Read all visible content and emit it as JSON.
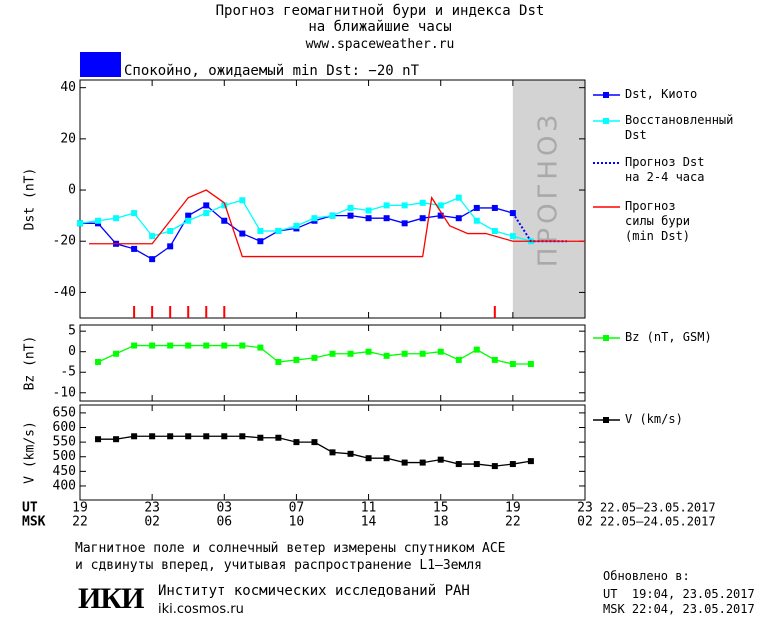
{
  "header": {
    "title": "Прогноз геомагнитной бури и индекса Dst",
    "subtitle": "на ближайшие часы",
    "site": "www.spaceweather.ru"
  },
  "status": {
    "text": "Спокойно, ожидаемый min Dst: −20 nT",
    "color": "#0000ff"
  },
  "time_axis": {
    "xlim": [
      0,
      28
    ],
    "rows": [
      {
        "name": "UT",
        "dates": "22.05–23.05.2017",
        "ticks": [
          {
            "value": 0,
            "label": "19"
          },
          {
            "value": 4,
            "label": "23"
          },
          {
            "value": 8,
            "label": "03"
          },
          {
            "value": 12,
            "label": "07"
          },
          {
            "value": 16,
            "label": "11"
          },
          {
            "value": 20,
            "label": "15"
          },
          {
            "value": 24,
            "label": "19"
          },
          {
            "value": 28,
            "label": "23"
          }
        ]
      },
      {
        "name": "MSK",
        "dates": "22.05–24.05.2017",
        "ticks": [
          {
            "value": 0,
            "label": "22"
          },
          {
            "value": 4,
            "label": "02"
          },
          {
            "value": 8,
            "label": "06"
          },
          {
            "value": 12,
            "label": "10"
          },
          {
            "value": 16,
            "label": "14"
          },
          {
            "value": 20,
            "label": "18"
          },
          {
            "value": 24,
            "label": "22"
          },
          {
            "value": 28,
            "label": "02"
          }
        ]
      }
    ]
  },
  "chart_data": [
    {
      "type": "line",
      "y_label": "Dst (nT)",
      "ylim": [
        -50,
        43
      ],
      "yticks": [
        40,
        20,
        0,
        -20,
        -40
      ],
      "forecast_region": [
        24,
        28
      ],
      "forecast_label": "ПРОГНОЗ",
      "forecast_color": "#d3d3d3",
      "event_marks": [
        3,
        4,
        5,
        6,
        7,
        8,
        23
      ],
      "event_color": "#ff0000",
      "series": [
        {
          "name": "Dst, Киото",
          "color": "#0000ff",
          "marker": "square",
          "dash": false,
          "x": [
            0,
            1,
            2,
            3,
            4,
            5,
            6,
            7,
            8,
            9,
            10,
            11,
            12,
            13,
            14,
            15,
            16,
            17,
            18,
            19,
            20,
            21,
            22,
            23,
            24
          ],
          "values": [
            -13,
            -13,
            -21,
            -23,
            -27,
            -22,
            -10,
            -6,
            -12,
            -17,
            -20,
            -16,
            -15,
            -12,
            -10,
            -10,
            -11,
            -11,
            -13,
            -11,
            -10,
            -11,
            -7,
            -7,
            -9
          ]
        },
        {
          "name": "Восстановленный\nDst",
          "color": "#00ffff",
          "marker": "square",
          "dash": false,
          "x": [
            0,
            1,
            2,
            3,
            4,
            5,
            6,
            7,
            8,
            9,
            10,
            11,
            12,
            13,
            14,
            15,
            16,
            17,
            18,
            19,
            20,
            21,
            22,
            23,
            24,
            25
          ],
          "values": [
            -13,
            -12,
            -11,
            -9,
            -18,
            -16,
            -12,
            -9,
            -6,
            -4,
            -16,
            -16,
            -14,
            -11,
            -10,
            -7,
            -8,
            -6,
            -6,
            -5,
            -6,
            -3,
            -12,
            -16,
            -18,
            -20
          ]
        },
        {
          "name": "Прогноз Dst\nна 2-4 часа",
          "color": "#0000ff",
          "marker": "none",
          "dash": true,
          "x": [
            24,
            25,
            26,
            27
          ],
          "values": [
            -9,
            -20,
            -20,
            -20
          ]
        },
        {
          "name": "Прогноз\nсилы бури\n(min Dst)",
          "color": "#ff0000",
          "marker": "none",
          "dash": false,
          "x": [
            0.5,
            4,
            6,
            7,
            8,
            9,
            19,
            19.5,
            20.5,
            21.5,
            22.5,
            24,
            28
          ],
          "values": [
            -21,
            -21,
            -3,
            0,
            -5,
            -26,
            -26,
            -3,
            -14,
            -17,
            -17,
            -20,
            -20
          ]
        }
      ]
    },
    {
      "type": "line",
      "y_label": "Bz (nT)",
      "ylim": [
        -12,
        6.5
      ],
      "yticks": [
        5,
        0,
        -5,
        -10
      ],
      "series": [
        {
          "name": "Bz (nT, GSM)",
          "color": "#00ff00",
          "marker": "square",
          "dash": false,
          "x": [
            1,
            2,
            3,
            4,
            5,
            6,
            7,
            8,
            9,
            10,
            11,
            12,
            13,
            14,
            15,
            16,
            17,
            18,
            19,
            20,
            21,
            22,
            23,
            24,
            25
          ],
          "values": [
            -2.5,
            -0.5,
            1.5,
            1.5,
            1.5,
            1.5,
            1.5,
            1.5,
            1.5,
            1,
            -2.5,
            -2,
            -1.5,
            -0.5,
            -0.5,
            0,
            -1,
            -0.5,
            -0.5,
            0,
            -2,
            0.5,
            -2,
            -3,
            -3
          ]
        }
      ]
    },
    {
      "type": "line",
      "y_label": "V (km/s)",
      "ylim": [
        352,
        677
      ],
      "yticks": [
        650,
        600,
        550,
        500,
        450,
        400
      ],
      "series": [
        {
          "name": "V (km/s)",
          "color": "#000000",
          "marker": "square",
          "dash": false,
          "x": [
            1,
            2,
            3,
            4,
            5,
            6,
            7,
            8,
            9,
            10,
            11,
            12,
            13,
            14,
            15,
            16,
            17,
            18,
            19,
            20,
            21,
            22,
            23,
            24,
            25
          ],
          "values": [
            560,
            560,
            570,
            570,
            570,
            570,
            570,
            570,
            570,
            565,
            565,
            550,
            550,
            515,
            510,
            495,
            495,
            480,
            480,
            490,
            475,
            475,
            468,
            475,
            485
          ]
        }
      ]
    }
  ],
  "footer": {
    "note": [
      "Магнитное поле и солнечный ветер измерены спутником ACE",
      "и сдвинуты вперед, учитывая распространение L1–Земля"
    ],
    "logo": "ИКИ",
    "institute": "Институт космических исследований РАН",
    "url": "iki.cosmos.ru",
    "updated": {
      "title": "Обновлено в:",
      "lines": [
        "UT  19:04, 23.05.2017",
        "MSK 22:04, 23.05.2017"
      ]
    }
  }
}
